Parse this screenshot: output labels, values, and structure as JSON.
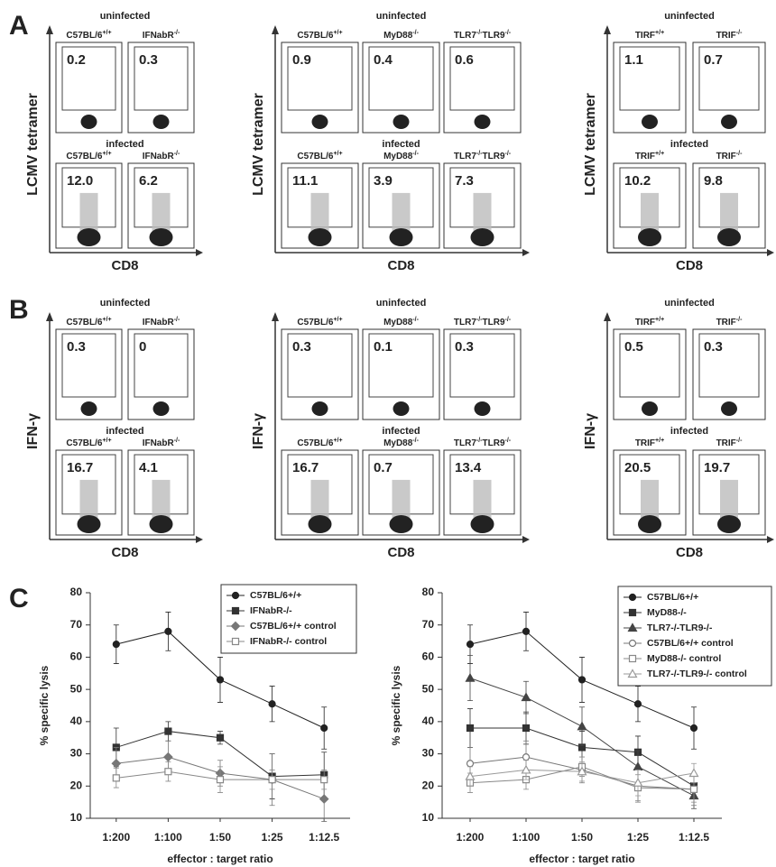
{
  "panel_labels": [
    "A",
    "B",
    "C"
  ],
  "flow": {
    "rows": [
      {
        "groups": [
          {
            "ylabel": "LCMV tetramer",
            "xlabel": "CD8",
            "uninfected_header": "uninfected",
            "infected_header": "infected",
            "uninfected": [
              {
                "label": [
                  "C57BL/6",
                  "+/+"
                ],
                "value": "0.2"
              },
              {
                "label": [
                  "IFNabR",
                  "-/-"
                ],
                "value": "0.3"
              }
            ],
            "infected": [
              {
                "label": [
                  "C57BL/6",
                  "+/+"
                ],
                "value": "12.0"
              },
              {
                "label": [
                  "IFNabR",
                  "-/-"
                ],
                "value": "6.2"
              }
            ]
          },
          {
            "ylabel": "LCMV tetramer",
            "xlabel": "CD8",
            "uninfected_header": "uninfected",
            "infected_header": "infected",
            "uninfected": [
              {
                "label": [
                  "C57BL/6",
                  "+/+"
                ],
                "value": "0.9"
              },
              {
                "label": [
                  "MyD88",
                  "-/-"
                ],
                "value": "0.4"
              },
              {
                "label": [
                  "TLR7",
                  "-/-",
                  "TLR9",
                  "-/-"
                ],
                "value": "0.6"
              }
            ],
            "infected": [
              {
                "label": [
                  "C57BL/6",
                  "+/+"
                ],
                "value": "11.1"
              },
              {
                "label": [
                  "MyD88",
                  "-/-"
                ],
                "value": "3.9"
              },
              {
                "label": [
                  "TLR7",
                  "-/-",
                  "TLR9",
                  "-/-"
                ],
                "value": "7.3"
              }
            ]
          },
          {
            "ylabel": "LCMV tetramer",
            "xlabel": "CD8",
            "uninfected_header": "uninfected",
            "infected_header": "infected",
            "uninfected": [
              {
                "label": [
                  "TIRF",
                  "+/+"
                ],
                "value": "1.1"
              },
              {
                "label": [
                  "TRIF",
                  "-/-"
                ],
                "value": "0.7"
              }
            ],
            "infected": [
              {
                "label": [
                  "TRIF",
                  "+/+"
                ],
                "value": "10.2"
              },
              {
                "label": [
                  "TRIF",
                  "-/-"
                ],
                "value": "9.8"
              }
            ]
          }
        ]
      },
      {
        "groups": [
          {
            "ylabel": "IFN-γ",
            "xlabel": "CD8",
            "uninfected_header": "uninfected",
            "infected_header": "infected",
            "uninfected": [
              {
                "label": [
                  "C57BL/6",
                  "+/+"
                ],
                "value": "0.3"
              },
              {
                "label": [
                  "IFNabR",
                  "-/-"
                ],
                "value": "0"
              }
            ],
            "infected": [
              {
                "label": [
                  "C57BL/6",
                  "+/+"
                ],
                "value": "16.7"
              },
              {
                "label": [
                  "IFNabR",
                  "-/-"
                ],
                "value": "4.1"
              }
            ]
          },
          {
            "ylabel": "IFN-γ",
            "xlabel": "CD8",
            "uninfected_header": "uninfected",
            "infected_header": "infected",
            "uninfected": [
              {
                "label": [
                  "C57BL/6",
                  "+/+"
                ],
                "value": "0.3"
              },
              {
                "label": [
                  "MyD88",
                  "-/-"
                ],
                "value": "0.1"
              },
              {
                "label": [
                  "TLR7",
                  "-/-",
                  "TLR9",
                  "-/-"
                ],
                "value": "0.3"
              }
            ],
            "infected": [
              {
                "label": [
                  "C57BL/6",
                  "+/+"
                ],
                "value": "16.7"
              },
              {
                "label": [
                  "MyD88",
                  "-/-"
                ],
                "value": "0.7"
              },
              {
                "label": [
                  "TLR7",
                  "-/-",
                  "TLR9",
                  "-/-"
                ],
                "value": "13.4"
              }
            ]
          },
          {
            "ylabel": "IFN-γ",
            "xlabel": "CD8",
            "uninfected_header": "uninfected",
            "infected_header": "infected",
            "uninfected": [
              {
                "label": [
                  "TIRF",
                  "+/+"
                ],
                "value": "0.5"
              },
              {
                "label": [
                  "TRIF",
                  "-/-"
                ],
                "value": "0.3"
              }
            ],
            "infected": [
              {
                "label": [
                  "TRIF",
                  "+/+"
                ],
                "value": "20.5"
              },
              {
                "label": [
                  "TRIF",
                  "-/-"
                ],
                "value": "19.7"
              }
            ]
          }
        ]
      }
    ]
  },
  "chart_data": [
    {
      "type": "line",
      "ylabel": "% specific lysis",
      "xlabel": "effector : target ratio",
      "categories": [
        "1:200",
        "1:100",
        "1:50",
        "1:25",
        "1:12.5"
      ],
      "ylim": [
        10,
        80
      ],
      "yticks": [
        10,
        20,
        30,
        40,
        50,
        60,
        70,
        80
      ],
      "series": [
        {
          "name": "C57BL/6+/+",
          "color": "#222222",
          "marker": "circle",
          "filled": true,
          "values": [
            64,
            68,
            53,
            45.5,
            38
          ],
          "errors": [
            6,
            6,
            7,
            5.5,
            6.5
          ]
        },
        {
          "name": "IFNabR-/-",
          "color": "#333333",
          "marker": "square",
          "filled": true,
          "values": [
            32,
            37,
            35,
            23,
            23.5
          ],
          "errors": [
            6,
            3,
            2,
            7,
            7
          ]
        },
        {
          "name": "C57BL/6+/+ control",
          "color": "#777777",
          "marker": "diamond",
          "filled": true,
          "values": [
            27,
            29,
            24,
            22,
            16
          ],
          "errors": [
            5,
            5,
            4,
            8,
            7
          ]
        },
        {
          "name": "IFNabR-/- control",
          "color": "#888888",
          "marker": "square",
          "filled": false,
          "values": [
            22.5,
            24.5,
            22,
            22,
            22
          ],
          "errors": [
            3,
            3,
            4,
            3,
            3
          ]
        }
      ]
    },
    {
      "type": "line",
      "ylabel": "% specific lysis",
      "xlabel": "effector : target ratio",
      "categories": [
        "1:200",
        "1:100",
        "1:50",
        "1:25",
        "1:12.5"
      ],
      "ylim": [
        10,
        80
      ],
      "yticks": [
        10,
        20,
        30,
        40,
        50,
        60,
        70,
        80
      ],
      "series": [
        {
          "name": "C57BL/6+/+",
          "color": "#222222",
          "marker": "circle",
          "filled": true,
          "values": [
            64,
            68,
            53,
            45.5,
            38
          ],
          "errors": [
            6,
            6,
            7,
            5.5,
            6.5
          ]
        },
        {
          "name": "MyD88-/-",
          "color": "#333333",
          "marker": "square",
          "filled": true,
          "values": [
            38,
            38,
            32,
            30.5,
            20
          ],
          "errors": [
            6,
            5,
            5,
            5,
            4
          ]
        },
        {
          "name": "TLR7-/-TLR9-/-",
          "color": "#444444",
          "marker": "triangle",
          "filled": true,
          "values": [
            53.5,
            47.5,
            38.5,
            26,
            17
          ],
          "errors": [
            7,
            5,
            6,
            5,
            4
          ]
        },
        {
          "name": "C57BL/6+/+ control",
          "color": "#777777",
          "marker": "circle",
          "filled": false,
          "values": [
            27,
            29,
            25,
            20,
            19
          ],
          "errors": [
            5,
            5,
            4,
            5,
            5
          ]
        },
        {
          "name": "MyD88-/- control",
          "color": "#888888",
          "marker": "square",
          "filled": false,
          "values": [
            21,
            22,
            26,
            19.5,
            19
          ],
          "errors": [
            3,
            3,
            3,
            4,
            4
          ]
        },
        {
          "name": "TLR7-/-TLR9-/- control",
          "color": "#999999",
          "marker": "triangle",
          "filled": false,
          "values": [
            23,
            25,
            24.5,
            21,
            24
          ],
          "errors": [
            3,
            3,
            3,
            4,
            3
          ]
        }
      ]
    }
  ]
}
